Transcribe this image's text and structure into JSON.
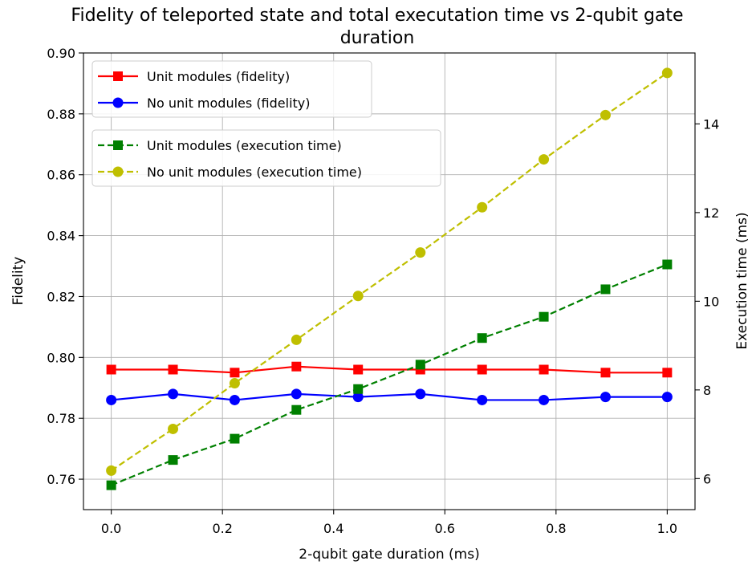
{
  "chart_data": {
    "type": "line",
    "title_lines": [
      "Fidelity of teleported state and total executation time vs 2-qubit gate",
      "duration"
    ],
    "xlabel": "2-qubit gate duration (ms)",
    "ylabel": "Fidelity",
    "y2label": "Execution time (ms)",
    "xlim": [
      -0.05,
      1.05
    ],
    "ylim": [
      0.75,
      0.9
    ],
    "y2lim": [
      5.3,
      15.6
    ],
    "xticks": [
      0.0,
      0.2,
      0.4,
      0.6,
      0.8,
      1.0
    ],
    "xtick_labels": [
      "0.0",
      "0.2",
      "0.4",
      "0.6",
      "0.8",
      "1.0"
    ],
    "yticks": [
      0.76,
      0.78,
      0.8,
      0.82,
      0.84,
      0.86,
      0.88,
      0.9
    ],
    "ytick_labels": [
      "0.76",
      "0.78",
      "0.80",
      "0.82",
      "0.84",
      "0.86",
      "0.88",
      "0.90"
    ],
    "y2ticks": [
      6,
      8,
      10,
      12,
      14
    ],
    "y2tick_labels": [
      "6",
      "8",
      "10",
      "12",
      "14"
    ],
    "grid": true,
    "x": [
      0.0,
      0.111,
      0.222,
      0.333,
      0.444,
      0.556,
      0.667,
      0.778,
      0.889,
      1.0
    ],
    "series": [
      {
        "name": "Unit modules (fidelity)",
        "axis": "left",
        "color": "#ff0000",
        "marker": "square",
        "dashed": false,
        "values": [
          0.796,
          0.796,
          0.795,
          0.797,
          0.796,
          0.796,
          0.796,
          0.796,
          0.795,
          0.795
        ]
      },
      {
        "name": "No unit modules (fidelity)",
        "axis": "left",
        "color": "#0000ff",
        "marker": "circle",
        "dashed": false,
        "values": [
          0.786,
          0.788,
          0.786,
          0.788,
          0.787,
          0.788,
          0.786,
          0.786,
          0.787,
          0.787
        ]
      },
      {
        "name": "Unit modules (execution time)",
        "axis": "right",
        "color": "#008000",
        "marker": "square",
        "dashed": true,
        "values": [
          5.85,
          6.42,
          6.9,
          7.55,
          8.02,
          8.57,
          9.17,
          9.65,
          10.27,
          10.83
        ]
      },
      {
        "name": "No unit modules (execution time)",
        "axis": "right",
        "color": "#bfbf00",
        "marker": "circle",
        "dashed": true,
        "values": [
          6.18,
          7.12,
          8.15,
          9.13,
          10.12,
          11.1,
          12.12,
          13.2,
          14.2,
          15.15
        ]
      }
    ],
    "legends": [
      {
        "placement": "upper-left",
        "series": [
          0,
          1
        ]
      },
      {
        "placement": "upper-left-below",
        "series": [
          2,
          3
        ]
      }
    ]
  }
}
